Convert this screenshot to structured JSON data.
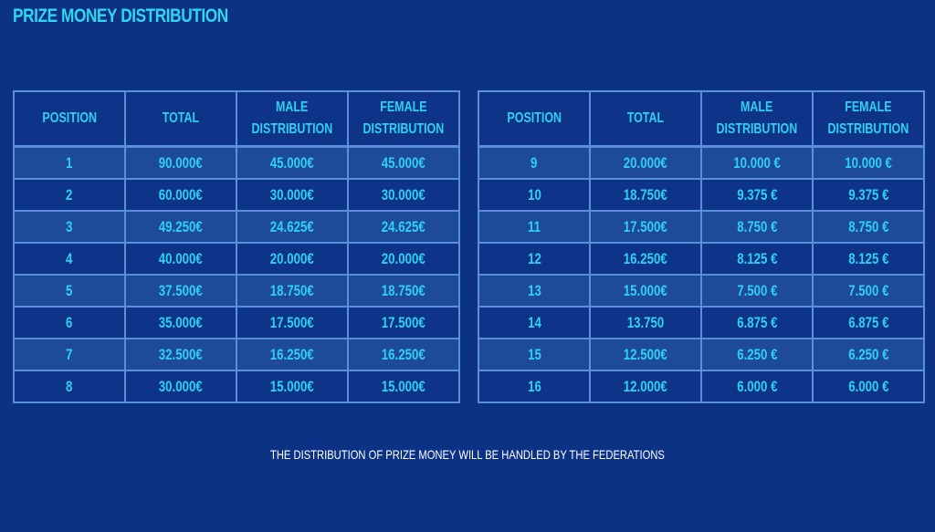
{
  "title": "PRIZE MONEY DISTRIBUTION",
  "columns": [
    "POSITION",
    "TOTAL",
    "MALE DISTRIBUTION",
    "FEMALE DISTRIBUTION"
  ],
  "header_lines": {
    "position": [
      "POSITION"
    ],
    "total": [
      "TOTAL"
    ],
    "male": [
      "MALE",
      "DISTRIBUTION"
    ],
    "female": [
      "FEMALE",
      "DISTRIBUTION"
    ]
  },
  "left_table": {
    "rows": [
      {
        "position": "1",
        "total": "90.000€",
        "male": "45.000€",
        "female": "45.000€"
      },
      {
        "position": "2",
        "total": "60.000€",
        "male": "30.000€",
        "female": "30.000€"
      },
      {
        "position": "3",
        "total": "49.250€",
        "male": "24.625€",
        "female": "24.625€"
      },
      {
        "position": "4",
        "total": "40.000€",
        "male": "20.000€",
        "female": "20.000€"
      },
      {
        "position": "5",
        "total": "37.500€",
        "male": "18.750€",
        "female": "18.750€"
      },
      {
        "position": "6",
        "total": "35.000€",
        "male": "17.500€",
        "female": "17.500€"
      },
      {
        "position": "7",
        "total": "32.500€",
        "male": "16.250€",
        "female": "16.250€"
      },
      {
        "position": "8",
        "total": "30.000€",
        "male": "15.000€",
        "female": "15.000€"
      }
    ]
  },
  "right_table": {
    "rows": [
      {
        "position": "9",
        "total": "20.000€",
        "male": "10.000 €",
        "female": "10.000 €"
      },
      {
        "position": "10",
        "total": "18.750€",
        "male": "9.375 €",
        "female": "9.375 €"
      },
      {
        "position": "11",
        "total": "17.500€",
        "male": "8.750 €",
        "female": "8.750 €"
      },
      {
        "position": "12",
        "total": "16.250€",
        "male": "8.125 €",
        "female": "8.125 €"
      },
      {
        "position": "13",
        "total": "15.000€",
        "male": "7.500 €",
        "female": "7.500 €"
      },
      {
        "position": "14",
        "total": "13.750",
        "male": "6.875 €",
        "female": "6.875 €"
      },
      {
        "position": "15",
        "total": "12.500€",
        "male": "6.250 €",
        "female": "6.250 €"
      },
      {
        "position": "16",
        "total": "12.000€",
        "male": "6.000 €",
        "female": "6.000 €"
      }
    ]
  },
  "footnote": "THE DISTRIBUTION OF PRIZE MONEY WILL BE HANDLED BY THE FEDERATIONS",
  "colors": {
    "background": "#0c3285",
    "header_cell": "#0e3489",
    "alt_row": "#1e4a9c",
    "border": "#5a8fdb",
    "text_accent": "#2fd0f0",
    "footnote_text": "#ffffff"
  }
}
